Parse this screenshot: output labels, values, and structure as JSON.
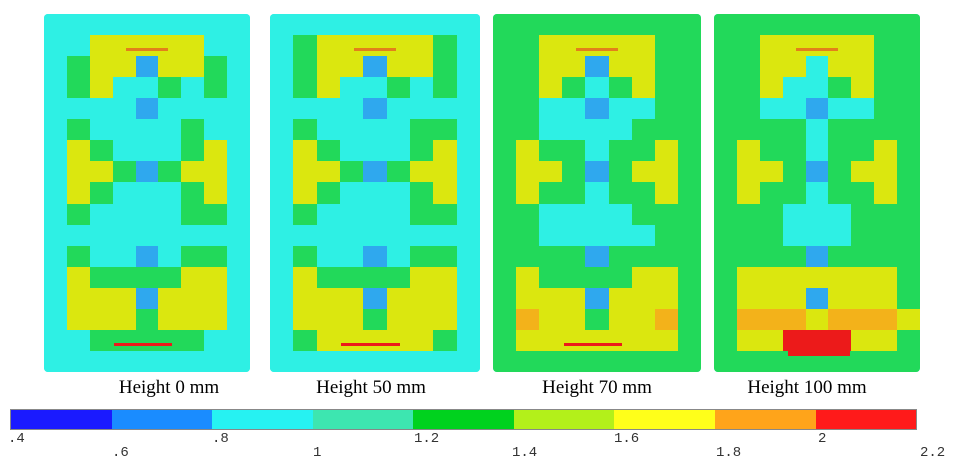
{
  "panels": [
    {
      "label": "Height 0 mm",
      "field": [
        "ccccccccc",
        "ccyyyyycc",
        "cgyybyygc",
        "cgyccgcgc",
        "ccccbcccc",
        "cgccccgcc",
        "cygcccgyc",
        "cyygbgyyc",
        "cygcccgyc",
        "cgccccggc",
        "ccccccccc",
        "cgccbcggc",
        "cyggggyyc",
        "cyyybyyyc",
        "cyyygyyyc",
        "ccgggggcc",
        "ccccccccc"
      ],
      "hotline": "red-thin"
    },
    {
      "label": "Height 50 mm",
      "field": [
        "ccccccccc",
        "cgyyyyygc",
        "cgyybyygc",
        "cgyccgcgc",
        "ccccbcccc",
        "cgccccggc",
        "cygcccgyc",
        "cyygbgyyc",
        "cygcccgyc",
        "cgccccggc",
        "ccccccccc",
        "cgccbcggc",
        "cyggggyyc",
        "cyyybyyyc",
        "cyyygyyyc",
        "cgyyyyygc",
        "ccccccccc"
      ],
      "hotline": "red-thin"
    },
    {
      "label": "Height 70 mm",
      "field": [
        "ggggggggg",
        "ggyyyyygg",
        "ggyybyygg",
        "ggygcgygg",
        "ggccbccgg",
        "ggccccggg",
        "gyggcggyg",
        "gyygbgyyg",
        "gyggcggyg",
        "ggccccggg",
        "ggcccccgg",
        "ggggbgggg",
        "gyggggyyg",
        "gyyybyyyg",
        "goyygyyog",
        "gyyyyyyyg",
        "ggggggggg"
      ],
      "hotline": "red-thin"
    },
    {
      "label": "Height 100 mm",
      "field": [
        "ggggggggg",
        "ggyyyyygg",
        "ggyycyygg",
        "ggyccgygg",
        "ggccbccgg",
        "ggggcgggg",
        "gyggcggyg",
        "gyygbgyyg",
        "gyggcggyg",
        "gggcccggg",
        "gggcccggg",
        "ggggbgggg",
        "gyyyyyyyg",
        "gyyybyyyg",
        "goooyoooy",
        "gyyrrryyg",
        "ggggggggg"
      ],
      "hotline": "red-block"
    }
  ],
  "colorbar": {
    "ticks": [
      ".4",
      ".6",
      ".8",
      "1",
      "1.2",
      "1.4",
      "1.6",
      "1.8",
      "2",
      "2.2"
    ],
    "colors": [
      "#1a1aff",
      "#1a8cff",
      "#26f2f2",
      "#3de6b0",
      "#00d21e",
      "#b3f01a",
      "#ffff1a",
      "#ffa41a",
      "#ff1a1a"
    ]
  },
  "palette": {
    "c": "#2ef0e4",
    "b": "#2fa8ee",
    "g": "#22d95a",
    "y": "#dbe70f",
    "o": "#f3b21a",
    "r": "#ec1a1a",
    "t": "#3ee7b8"
  }
}
